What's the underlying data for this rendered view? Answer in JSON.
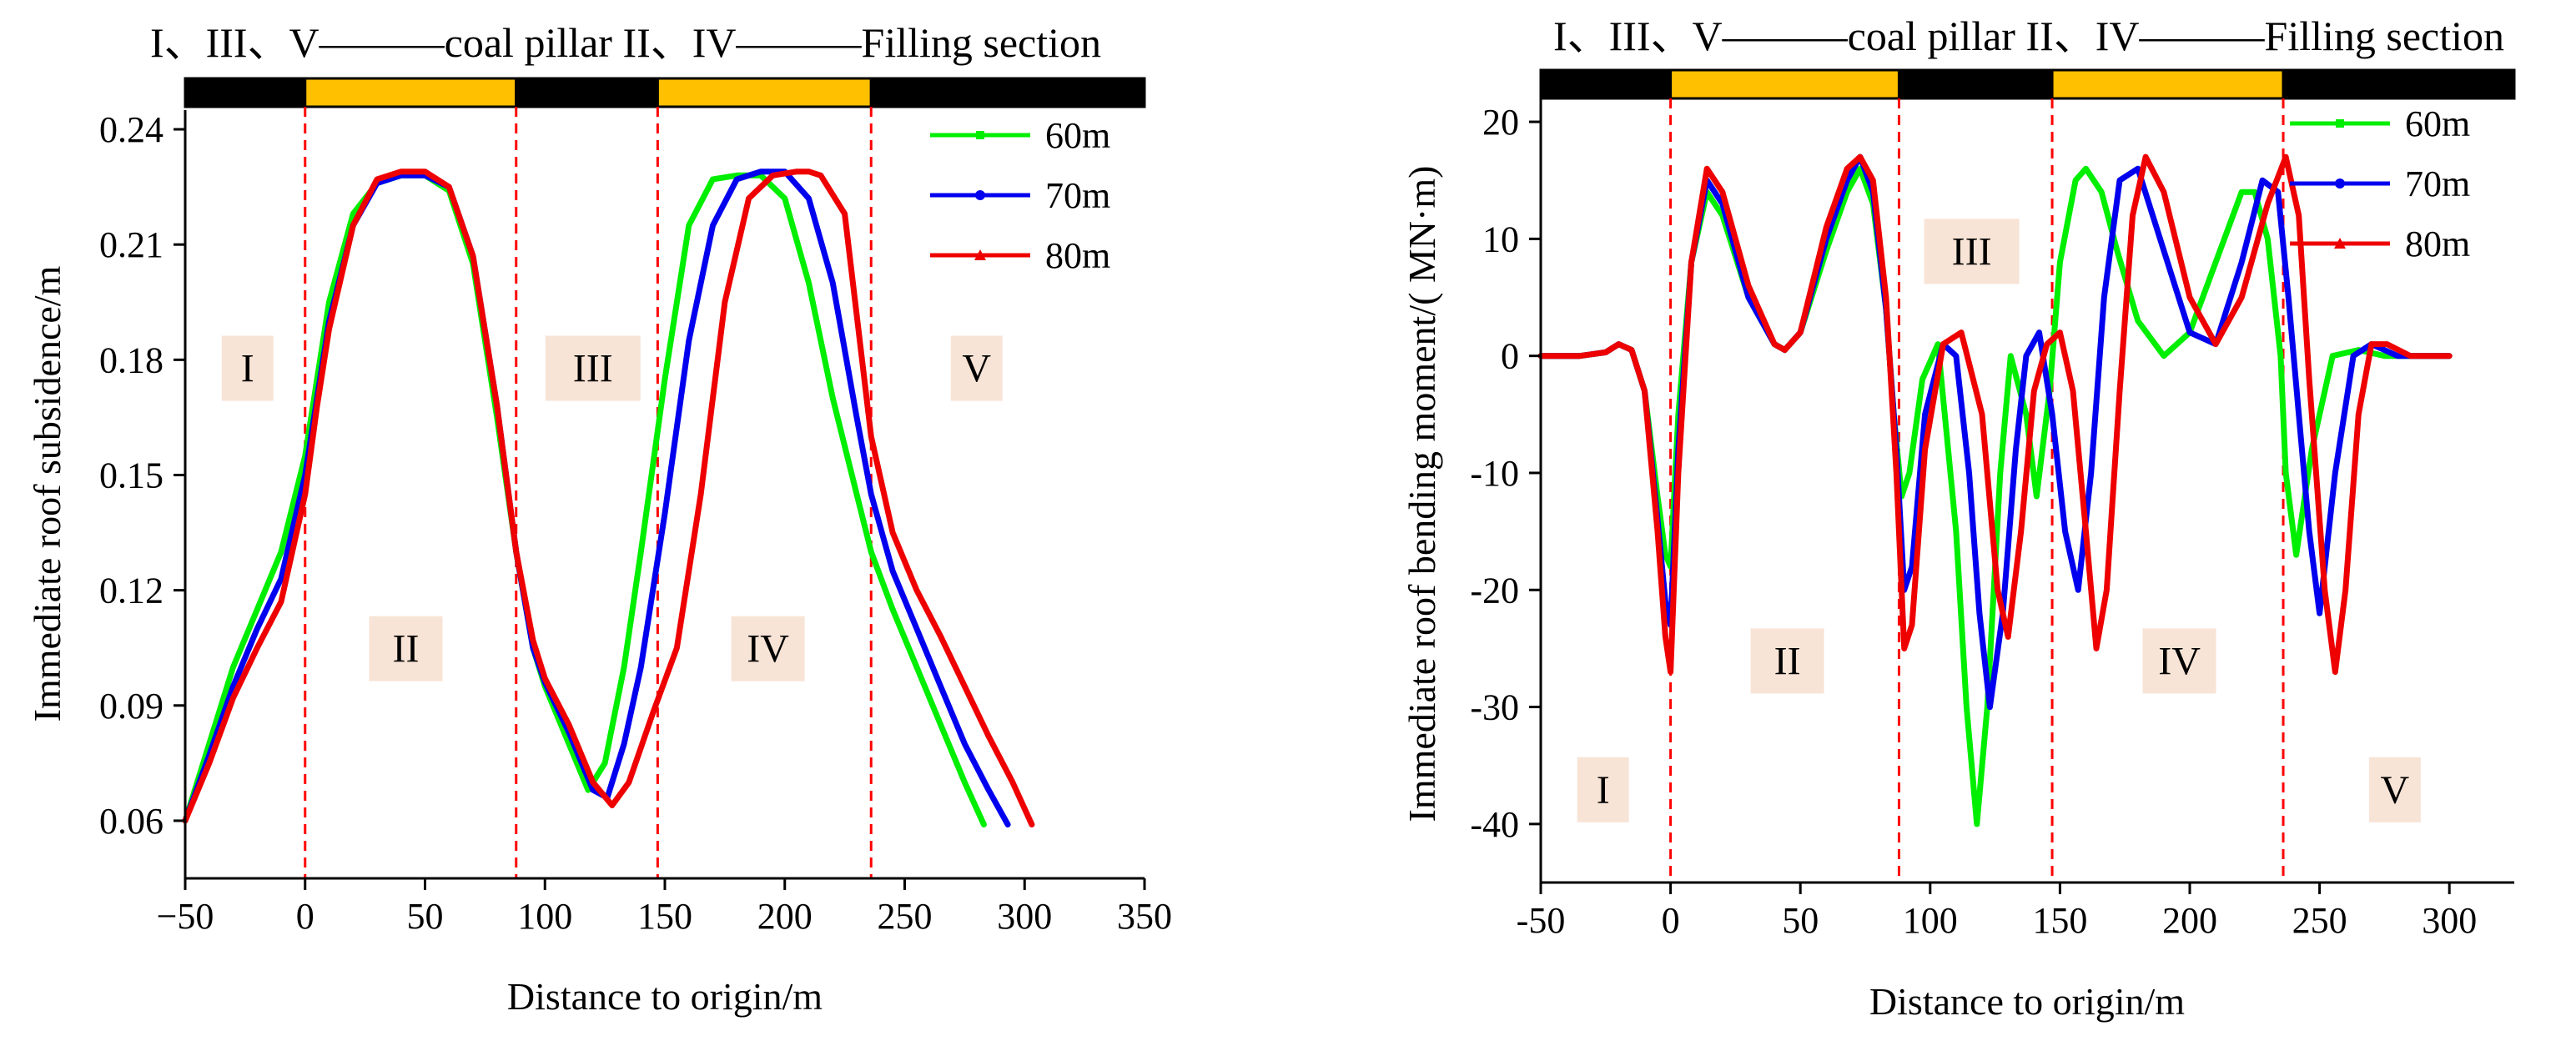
{
  "colors": {
    "pillar": "#000000",
    "filling": "#FFC000",
    "boundary": "#FF0000",
    "region_bg": "#F8E4D6",
    "series_60": "#00EE00",
    "series_70": "#0000EE",
    "series_80": "#EE0000"
  },
  "chart_data": [
    {
      "type": "line",
      "header": "I、III、V———coal pillar   II、IV———Filling  section",
      "xlabel": "Distance to origin/m",
      "ylabel": "Immediate roof subsidence/m",
      "xlim": [
        -50,
        350
      ],
      "ylim": [
        0.045,
        0.245
      ],
      "xticks": [
        -50,
        0,
        50,
        100,
        150,
        200,
        250,
        300,
        350
      ],
      "xtick_labels": [
        "−50",
        "0",
        "50",
        "100",
        "150",
        "200",
        "250",
        "300",
        "350"
      ],
      "yticks": [
        0.06,
        0.09,
        0.12,
        0.15,
        0.18,
        0.21,
        0.24
      ],
      "ytick_labels": [
        "0.06",
        "0.09",
        "0.12",
        "0.15",
        "0.18",
        "0.21",
        "0.24"
      ],
      "bar_segments": [
        {
          "from": -50,
          "to": 0,
          "kind": "pillar"
        },
        {
          "from": 0,
          "to": 88,
          "kind": "filling"
        },
        {
          "from": 88,
          "to": 147,
          "kind": "pillar"
        },
        {
          "from": 147,
          "to": 236,
          "kind": "filling"
        },
        {
          "from": 236,
          "to": 350,
          "kind": "pillar"
        }
      ],
      "boundaries": [
        0,
        88,
        147,
        236
      ],
      "regions": [
        {
          "label": "I",
          "x": -24,
          "y": 0.178
        },
        {
          "label": "II",
          "x": 42,
          "y": 0.105
        },
        {
          "label": "III",
          "x": 120,
          "y": 0.178
        },
        {
          "label": "IV",
          "x": 193,
          "y": 0.105
        },
        {
          "label": "V",
          "x": 280,
          "y": 0.178
        }
      ],
      "legend": [
        "60m",
        "70m",
        "80m"
      ],
      "series": [
        {
          "name": "60m",
          "x": [
            -50,
            -40,
            -30,
            -20,
            -10,
            0,
            5,
            10,
            20,
            30,
            40,
            50,
            60,
            70,
            80,
            88,
            95,
            100,
            110,
            118,
            125,
            133,
            140,
            150,
            160,
            170,
            180,
            190,
            200,
            210,
            220,
            230,
            236,
            245,
            255,
            265,
            275,
            283
          ],
          "y": [
            0.06,
            0.08,
            0.1,
            0.115,
            0.13,
            0.155,
            0.175,
            0.195,
            0.218,
            0.226,
            0.228,
            0.228,
            0.224,
            0.205,
            0.165,
            0.13,
            0.105,
            0.095,
            0.08,
            0.068,
            0.075,
            0.1,
            0.13,
            0.175,
            0.215,
            0.227,
            0.228,
            0.228,
            0.222,
            0.2,
            0.17,
            0.145,
            0.13,
            0.115,
            0.1,
            0.085,
            0.07,
            0.059
          ]
        },
        {
          "name": "70m",
          "x": [
            -50,
            -40,
            -30,
            -20,
            -10,
            0,
            5,
            10,
            20,
            30,
            40,
            50,
            60,
            70,
            80,
            88,
            95,
            100,
            110,
            120,
            126,
            133,
            140,
            150,
            160,
            170,
            180,
            190,
            200,
            210,
            220,
            230,
            236,
            245,
            255,
            265,
            275,
            285,
            293
          ],
          "y": [
            0.06,
            0.077,
            0.095,
            0.11,
            0.123,
            0.15,
            0.17,
            0.19,
            0.215,
            0.226,
            0.228,
            0.228,
            0.225,
            0.207,
            0.168,
            0.13,
            0.105,
            0.096,
            0.083,
            0.068,
            0.066,
            0.08,
            0.1,
            0.14,
            0.185,
            0.215,
            0.227,
            0.229,
            0.229,
            0.222,
            0.2,
            0.165,
            0.145,
            0.125,
            0.11,
            0.095,
            0.08,
            0.068,
            0.059
          ]
        },
        {
          "name": "80m",
          "x": [
            -50,
            -40,
            -30,
            -20,
            -10,
            0,
            5,
            10,
            20,
            30,
            40,
            50,
            60,
            70,
            80,
            88,
            95,
            100,
            110,
            120,
            128,
            135,
            145,
            155,
            165,
            175,
            185,
            195,
            205,
            210,
            215,
            225,
            236,
            245,
            255,
            265,
            275,
            285,
            295,
            303
          ],
          "y": [
            0.06,
            0.075,
            0.092,
            0.105,
            0.117,
            0.145,
            0.168,
            0.188,
            0.215,
            0.227,
            0.229,
            0.229,
            0.225,
            0.207,
            0.168,
            0.13,
            0.107,
            0.097,
            0.085,
            0.07,
            0.064,
            0.07,
            0.088,
            0.105,
            0.145,
            0.195,
            0.222,
            0.228,
            0.229,
            0.229,
            0.228,
            0.218,
            0.16,
            0.135,
            0.12,
            0.108,
            0.095,
            0.082,
            0.07,
            0.059
          ]
        }
      ]
    },
    {
      "type": "line",
      "header": "I、III、V———coal pillar   II、IV———Filling  section",
      "xlabel": "Distance to origin/m",
      "ylabel": "Immediate roof bending moment/( MN·m)",
      "xlim": [
        -50,
        325
      ],
      "ylim": [
        -45,
        22
      ],
      "xticks": [
        -50,
        0,
        50,
        100,
        150,
        200,
        250,
        300
      ],
      "xtick_labels": [
        "-50",
        "0",
        "50",
        "100",
        "150",
        "200",
        "250",
        "300"
      ],
      "yticks": [
        -40,
        -30,
        -20,
        -10,
        0,
        10,
        20
      ],
      "ytick_labels": [
        "-40",
        "-30",
        "-20",
        "-10",
        "0",
        "10",
        "20"
      ],
      "bar_segments": [
        {
          "from": -50,
          "to": 0,
          "kind": "pillar"
        },
        {
          "from": 0,
          "to": 88,
          "kind": "filling"
        },
        {
          "from": 88,
          "to": 147,
          "kind": "pillar"
        },
        {
          "from": 147,
          "to": 236,
          "kind": "filling"
        },
        {
          "from": 236,
          "to": 325,
          "kind": "pillar"
        }
      ],
      "boundaries": [
        0,
        88,
        147,
        236
      ],
      "regions": [
        {
          "label": "I",
          "x": -26,
          "y": -37
        },
        {
          "label": "II",
          "x": 45,
          "y": -26
        },
        {
          "label": "III",
          "x": 116,
          "y": 9
        },
        {
          "label": "IV",
          "x": 196,
          "y": -26
        },
        {
          "label": "V",
          "x": 279,
          "y": -37
        }
      ],
      "legend": [
        "60m",
        "70m",
        "80m"
      ],
      "series": [
        {
          "name": "60m",
          "x": [
            -50,
            -35,
            -25,
            -20,
            -15,
            -10,
            -5,
            -2,
            0,
            3,
            8,
            14,
            20,
            30,
            40,
            44,
            50,
            60,
            68,
            73,
            78,
            83,
            86,
            89,
            92,
            97,
            103,
            110,
            114,
            118,
            122,
            127,
            131,
            137,
            141,
            146,
            150,
            156,
            160,
            166,
            172,
            180,
            190,
            200,
            210,
            220,
            225,
            230,
            235,
            237,
            241,
            247,
            255,
            265,
            275,
            300
          ],
          "y": [
            0,
            0,
            0.3,
            1.0,
            0.5,
            -3,
            -12,
            -17,
            -18,
            -5,
            8,
            14,
            12,
            5,
            1,
            0.5,
            2,
            9,
            14,
            16,
            13,
            4,
            -5,
            -12,
            -10,
            -2,
            1,
            -15,
            -30,
            -40,
            -30,
            -10,
            0,
            -5,
            -12,
            -3,
            8,
            15,
            16,
            14,
            9,
            3,
            0,
            2,
            8,
            14,
            14,
            10,
            0,
            -10,
            -17,
            -8,
            0,
            0.5,
            0,
            0
          ]
        },
        {
          "name": "70m",
          "x": [
            -50,
            -35,
            -25,
            -20,
            -15,
            -10,
            -5,
            -2,
            0,
            3,
            8,
            14,
            20,
            30,
            40,
            44,
            50,
            60,
            68,
            73,
            78,
            83,
            87,
            90,
            93,
            98,
            105,
            110,
            115,
            119,
            123,
            128,
            133,
            137,
            142,
            147,
            152,
            157,
            162,
            167,
            173,
            180,
            190,
            200,
            210,
            220,
            228,
            234,
            238,
            242,
            246,
            250,
            256,
            263,
            270,
            280,
            300
          ],
          "y": [
            0,
            0,
            0.3,
            1.0,
            0.5,
            -3,
            -14,
            -21,
            -23,
            -8,
            8,
            15,
            13,
            5,
            1,
            0.5,
            2,
            10,
            15,
            17,
            14,
            4,
            -8,
            -20,
            -18,
            -5,
            1,
            0,
            -10,
            -22,
            -30,
            -22,
            -8,
            0,
            2,
            -5,
            -15,
            -20,
            -10,
            5,
            15,
            16,
            9,
            2,
            1,
            8,
            15,
            14,
            5,
            -5,
            -15,
            -22,
            -10,
            0,
            1,
            0,
            0
          ]
        },
        {
          "name": "80m",
          "x": [
            -50,
            -35,
            -25,
            -20,
            -15,
            -10,
            -5,
            -2,
            0,
            3,
            8,
            14,
            20,
            30,
            40,
            44,
            50,
            60,
            68,
            73,
            78,
            83,
            87,
            90,
            93,
            98,
            105,
            112,
            120,
            126,
            130,
            135,
            140,
            145,
            150,
            155,
            160,
            164,
            168,
            173,
            178,
            183,
            190,
            200,
            210,
            220,
            230,
            237,
            242,
            246,
            252,
            256,
            260,
            265,
            270,
            276,
            285,
            300
          ],
          "y": [
            0,
            0,
            0.3,
            1.0,
            0.5,
            -3,
            -15,
            -24,
            -27,
            -10,
            8,
            16,
            14,
            6,
            1,
            0.5,
            2,
            11,
            16,
            17,
            15,
            5,
            -10,
            -25,
            -23,
            -8,
            1,
            2,
            -5,
            -20,
            -24,
            -15,
            -3,
            1,
            2,
            -3,
            -15,
            -25,
            -20,
            -3,
            12,
            17,
            14,
            5,
            1,
            5,
            13,
            17,
            12,
            -2,
            -20,
            -27,
            -20,
            -5,
            1,
            1,
            0,
            0
          ]
        }
      ]
    }
  ]
}
